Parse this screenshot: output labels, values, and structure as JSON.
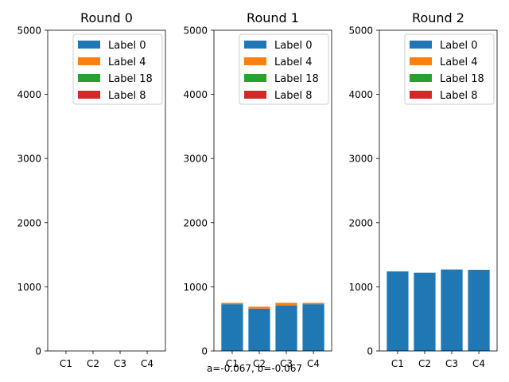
{
  "chart_data": [
    {
      "type": "bar",
      "stacked": true,
      "title": "Round 0",
      "categories": [
        "C1",
        "C2",
        "C3",
        "C4"
      ],
      "ylim": [
        0,
        5000
      ],
      "yticks": [
        0,
        1000,
        2000,
        3000,
        4000,
        5000
      ],
      "legend": "top-right",
      "series": [
        {
          "name": "Label 0",
          "color": "#1f77b4",
          "values": [
            0,
            0,
            0,
            0
          ]
        },
        {
          "name": "Label 4",
          "color": "#ff7f0e",
          "values": [
            0,
            0,
            0,
            0
          ]
        },
        {
          "name": "Label 18",
          "color": "#2ca02c",
          "values": [
            0,
            0,
            0,
            0
          ]
        },
        {
          "name": "Label 8",
          "color": "#d62728",
          "values": [
            0,
            0,
            0,
            0
          ]
        }
      ]
    },
    {
      "type": "bar",
      "stacked": true,
      "title": "Round 1",
      "categories": [
        "C1",
        "C2",
        "C3",
        "C4"
      ],
      "ylim": [
        0,
        5000
      ],
      "yticks": [
        0,
        1000,
        2000,
        3000,
        4000,
        5000
      ],
      "legend": "top-right",
      "series": [
        {
          "name": "Label 0",
          "color": "#1f77b4",
          "values": [
            730,
            660,
            710,
            730
          ]
        },
        {
          "name": "Label 4",
          "color": "#ff7f0e",
          "values": [
            20,
            30,
            40,
            20
          ]
        },
        {
          "name": "Label 18",
          "color": "#2ca02c",
          "values": [
            0,
            0,
            0,
            0
          ]
        },
        {
          "name": "Label 8",
          "color": "#d62728",
          "values": [
            0,
            0,
            0,
            0
          ]
        }
      ]
    },
    {
      "type": "bar",
      "stacked": true,
      "title": "Round 2",
      "categories": [
        "C1",
        "C2",
        "C3",
        "C4"
      ],
      "ylim": [
        0,
        5000
      ],
      "yticks": [
        0,
        1000,
        2000,
        3000,
        4000,
        5000
      ],
      "legend": "top-right",
      "series": [
        {
          "name": "Label 0",
          "color": "#1f77b4",
          "values": [
            1240,
            1220,
            1270,
            1265
          ]
        },
        {
          "name": "Label 4",
          "color": "#ff7f0e",
          "values": [
            0,
            0,
            0,
            0
          ]
        },
        {
          "name": "Label 18",
          "color": "#2ca02c",
          "values": [
            0,
            0,
            0,
            0
          ]
        },
        {
          "name": "Label 8",
          "color": "#d62728",
          "values": [
            0,
            0,
            0,
            0
          ]
        }
      ]
    }
  ],
  "caption": "a=-0.067, b=-0.067"
}
